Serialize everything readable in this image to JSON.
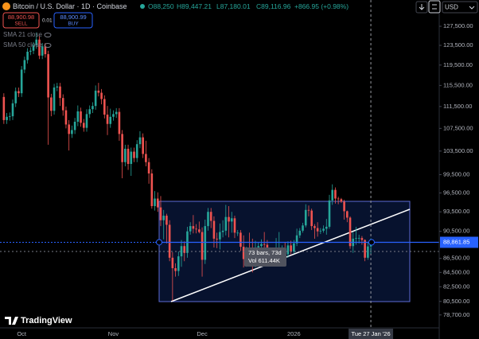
{
  "header": {
    "symbol": "Bitcoin / U.S. Dollar · 1D · Coinbase",
    "ohlc": [
      "O88,250",
      "H89,447.21",
      "L87,180.01",
      "C89,116.96",
      "+866.95 (+0.98%)"
    ],
    "sell_price": "88,900.98",
    "sell": "SELL",
    "spread": "0.01",
    "buy_price": "88,900.99",
    "buy": "BUY",
    "currency": "USD"
  },
  "indicators": [
    "SMA 21 close",
    "SMA 50 close"
  ],
  "measure": {
    "bars": "73 bars, 73d",
    "volume": "Vol 611.44K"
  },
  "brand": "TradingView",
  "chart_data": {
    "type": "candlestick",
    "log_scale": true,
    "grid": false,
    "up_color": "#26a69a",
    "down_color": "#ef5350",
    "xlim": [
      -1.3,
      147.1
    ],
    "xticks": [
      {
        "value": 6,
        "label": "Oct"
      },
      {
        "value": 37,
        "label": "Nov"
      },
      {
        "value": 67,
        "label": "Dec"
      },
      {
        "value": 98,
        "label": "2026"
      },
      {
        "value": 124,
        "label": "Tue 27 Jan '26"
      }
    ],
    "ylim": [
      77020,
      133230
    ],
    "yticks": [
      {
        "value": 127500,
        "label": "127,500.00"
      },
      {
        "value": 123500,
        "label": "123,500.00"
      },
      {
        "value": 119500,
        "label": "119,500.00"
      },
      {
        "value": 115500,
        "label": "115,500.00"
      },
      {
        "value": 111500,
        "label": "111,500.00"
      },
      {
        "value": 107500,
        "label": "107,500.00"
      },
      {
        "value": 103500,
        "label": "103,500.00"
      },
      {
        "value": 99500,
        "label": "99,500.00"
      },
      {
        "value": 96500,
        "label": "96,500.00"
      },
      {
        "value": 93500,
        "label": "93,500.00"
      },
      {
        "value": 90500,
        "label": "90,500.00"
      },
      {
        "value": 86500,
        "label": "86,500.00"
      },
      {
        "value": 84500,
        "label": "84,500.00"
      },
      {
        "value": 82500,
        "label": "82,500.00"
      },
      {
        "value": 80500,
        "label": "80,500.00"
      },
      {
        "value": 78700,
        "label": "78,700.00"
      }
    ],
    "price_line": {
      "value": 88861.85,
      "label": "88,861.85"
    },
    "open": [
      113300,
      109000,
      109600,
      109700,
      112100,
      114400,
      114000,
      118600,
      120500,
      122200,
      122400,
      123500,
      124700,
      121400,
      123300,
      121700,
      113200,
      110700,
      115100,
      115300,
      113100,
      110800,
      108200,
      106500,
      107200,
      108700,
      110600,
      108500,
      107600,
      110100,
      111000,
      111600,
      114500,
      114100,
      112900,
      110000,
      108300,
      109600,
      110100,
      110500,
      106500,
      101600,
      103900,
      101300,
      103400,
      102300,
      104700,
      105900,
      103000,
      101600,
      99700,
      94400,
      95600,
      94200,
      92200,
      92900,
      91500,
      86600,
      85100,
      84700,
      86800,
      88300,
      87300,
      90500,
      91300,
      90900,
      90800,
      90400,
      86300,
      91300,
      93500,
      92100,
      89400,
      89300,
      90400,
      90600,
      92700,
      92000,
      92500,
      90300,
      90300,
      88200,
      86400,
      87800,
      86100,
      85500,
      88100,
      88300,
      88600,
      88500,
      87600,
      87600,
      87200,
      87300,
      87800,
      87800,
      87100,
      88400,
      87500,
      88700,
      89900,
      90600,
      91400,
      93800,
      93700,
      91300,
      91000,
      90500,
      90600,
      90900,
      91200,
      95300,
      97000,
      95600,
      95500,
      95100,
      93600,
      92600,
      88300,
      89400,
      89500,
      89500,
      89200,
      86600,
      88250
    ],
    "high": [
      114000,
      110300,
      110400,
      112800,
      115100,
      115100,
      119300,
      121200,
      122900,
      123100,
      124200,
      126200,
      125400,
      124000,
      124000,
      122400,
      113900,
      115800,
      116000,
      116000,
      113800,
      111500,
      109000,
      108000,
      109400,
      111700,
      111300,
      109200,
      111000,
      111700,
      112300,
      115500,
      116000,
      114800,
      113600,
      111600,
      111100,
      110800,
      111200,
      111200,
      107200,
      104600,
      104600,
      104100,
      104100,
      105400,
      107000,
      106600,
      105300,
      102300,
      100400,
      96800,
      96600,
      96000,
      93800,
      93200,
      92200,
      87400,
      85800,
      87500,
      89200,
      89000,
      91200,
      91900,
      93000,
      91600,
      92000,
      91100,
      92300,
      94100,
      94100,
      92800,
      90300,
      91700,
      92200,
      94600,
      94400,
      93500,
      92900,
      90700,
      90700,
      89900,
      88200,
      90300,
      89400,
      89100,
      88800,
      89300,
      90400,
      89200,
      88100,
      88000,
      89500,
      90400,
      88400,
      88800,
      89000,
      89100,
      89200,
      90900,
      91000,
      91800,
      94700,
      94500,
      94000,
      91600,
      91900,
      91000,
      91400,
      92400,
      96200,
      97900,
      97400,
      95900,
      95700,
      95400,
      93700,
      92800,
      90400,
      91200,
      90000,
      89800,
      89300,
      88800,
      89447.21
    ],
    "low": [
      108300,
      108300,
      108900,
      109000,
      111400,
      113300,
      113300,
      117900,
      119800,
      121500,
      121700,
      122800,
      120700,
      120700,
      121000,
      104600,
      109700,
      110000,
      114400,
      111600,
      109800,
      107500,
      103600,
      105800,
      106500,
      107900,
      107800,
      106900,
      106900,
      109400,
      110300,
      110900,
      113400,
      111900,
      109300,
      106300,
      107600,
      108900,
      109400,
      105300,
      98900,
      100900,
      100300,
      99300,
      101600,
      101600,
      104000,
      102300,
      100900,
      98000,
      94000,
      93700,
      93500,
      91300,
      89300,
      88700,
      86100,
      80600,
      83900,
      84000,
      85300,
      86100,
      86600,
      90000,
      90200,
      90200,
      90200,
      83900,
      85700,
      90600,
      91000,
      88100,
      88000,
      87800,
      89600,
      89900,
      89600,
      90300,
      89500,
      89800,
      87600,
      85200,
      85300,
      85400,
      84500,
      85200,
      87700,
      87700,
      87900,
      86900,
      86600,
      86500,
      86700,
      86800,
      87000,
      86700,
      86600,
      87100,
      87200,
      88300,
      89500,
      90300,
      91100,
      92800,
      90700,
      89400,
      89700,
      90100,
      90300,
      90000,
      90900,
      94600,
      94800,
      94700,
      94900,
      92300,
      91900,
      87900,
      87300,
      88500,
      88700,
      88500,
      86100,
      86300,
      87180.01
    ],
    "close": [
      109000,
      109600,
      109700,
      112100,
      114400,
      114000,
      118600,
      120500,
      122200,
      122400,
      123500,
      124700,
      121400,
      123300,
      121700,
      113200,
      110700,
      115100,
      115300,
      113100,
      110800,
      108200,
      106500,
      107200,
      108700,
      110600,
      108500,
      107600,
      110100,
      111000,
      111600,
      114500,
      114100,
      112900,
      110000,
      108300,
      109600,
      110100,
      110500,
      106500,
      101600,
      103900,
      101300,
      103400,
      102300,
      104700,
      105900,
      103000,
      101600,
      99700,
      94400,
      95600,
      94200,
      92200,
      92900,
      91500,
      86600,
      85100,
      84700,
      86800,
      88300,
      87300,
      90500,
      91300,
      90900,
      90800,
      90400,
      86300,
      91300,
      93500,
      92100,
      89400,
      89300,
      90400,
      90600,
      92700,
      92000,
      92500,
      90300,
      90300,
      88200,
      86400,
      87800,
      86100,
      85500,
      88100,
      88300,
      88600,
      88500,
      87600,
      87600,
      87200,
      87300,
      87800,
      87800,
      87100,
      88400,
      87500,
      88700,
      89900,
      90600,
      91400,
      93800,
      93700,
      91300,
      91000,
      90500,
      90600,
      90900,
      91200,
      95300,
      97000,
      95600,
      95500,
      95100,
      93600,
      92600,
      88300,
      89400,
      89500,
      89500,
      89200,
      86600,
      88250,
      89116.96
    ]
  }
}
